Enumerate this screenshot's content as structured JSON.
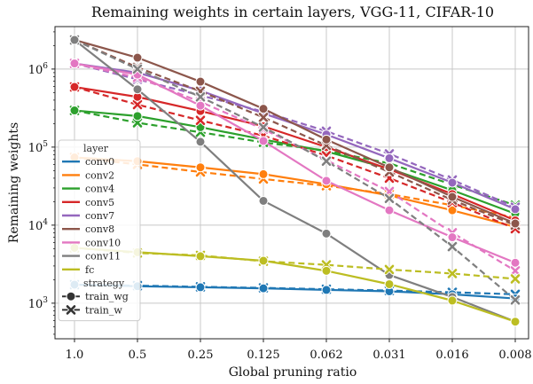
{
  "chart_data": {
    "type": "line",
    "title": "Remaining weights in certain layers, VGG-11, CIFAR-10",
    "xlabel": "Global pruning ratio",
    "ylabel": "Remaining weights",
    "yscale": "log",
    "ylim": [
      350,
      3500000
    ],
    "grid": true,
    "legend_position": "center-left",
    "categories": [
      "1.0",
      "0.5",
      "0.25",
      "0.125",
      "0.062",
      "0.031",
      "0.016",
      "0.008"
    ],
    "y_ticks": [
      {
        "value": 1000,
        "base": "10",
        "exp": "3"
      },
      {
        "value": 10000,
        "base": "10",
        "exp": "4"
      },
      {
        "value": 100000,
        "base": "10",
        "exp": "5"
      },
      {
        "value": 1000000,
        "base": "10",
        "exp": "6"
      }
    ],
    "legend": {
      "layer_title": "layer",
      "strategy_title": "strategy",
      "strategies": [
        {
          "name": "train_wg",
          "marker": "circle",
          "dash": "solid"
        },
        {
          "name": "train_w",
          "marker": "x",
          "dash": "dashed"
        }
      ]
    },
    "layers": [
      {
        "name": "conv0",
        "color": "#1f77b4",
        "train_wg": [
          1728,
          1650,
          1600,
          1550,
          1480,
          1420,
          1300,
          1150
        ],
        "train_w": [
          1728,
          1680,
          1620,
          1570,
          1510,
          1450,
          1380,
          1300
        ]
      },
      {
        "name": "conv2",
        "color": "#ff7f0e",
        "train_wg": [
          73700,
          66000,
          55000,
          45000,
          33500,
          24000,
          15500,
          9500
        ],
        "train_w": [
          73700,
          60000,
          48000,
          39000,
          32000,
          25000,
          18000,
          12500
        ]
      },
      {
        "name": "conv4",
        "color": "#2ca02c",
        "train_wg": [
          295000,
          250000,
          180000,
          125000,
          88000,
          53000,
          28000,
          14000
        ],
        "train_w": [
          295000,
          205000,
          155000,
          115000,
          90000,
          62000,
          33000,
          18000
        ]
      },
      {
        "name": "conv5",
        "color": "#d62728",
        "train_wg": [
          590000,
          440000,
          290000,
          185000,
          100000,
          52000,
          25000,
          11500
        ],
        "train_w": [
          590000,
          350000,
          220000,
          140000,
          78000,
          40000,
          19500,
          9000
        ]
      },
      {
        "name": "conv7",
        "color": "#9467bd",
        "train_wg": [
          1180000,
          900000,
          530000,
          270000,
          145000,
          72000,
          35000,
          16000
        ],
        "train_w": [
          1180000,
          740000,
          460000,
          285000,
          160000,
          82000,
          38000,
          17000
        ]
      },
      {
        "name": "conv8",
        "color": "#8c564b",
        "train_wg": [
          2360000,
          1400000,
          690000,
          310000,
          125000,
          55000,
          23000,
          10500
        ],
        "train_w": [
          2360000,
          1050000,
          520000,
          240000,
          105000,
          48000,
          21000,
          10000
        ]
      },
      {
        "name": "conv10",
        "color": "#e377c2",
        "train_wg": [
          1180000,
          850000,
          340000,
          120000,
          37000,
          15500,
          7000,
          3300
        ],
        "train_w": [
          1180000,
          780000,
          380000,
          170000,
          68000,
          27000,
          8000,
          2600
        ]
      },
      {
        "name": "conv11",
        "color": "#7f7f7f",
        "train_wg": [
          2360000,
          550000,
          117000,
          20500,
          7800,
          2300,
          1200,
          580
        ],
        "train_w": [
          2360000,
          1000000,
          440000,
          180000,
          66000,
          22000,
          5300,
          1100
        ]
      },
      {
        "name": "fc",
        "color": "#bcbd22",
        "train_wg": [
          5120,
          4500,
          4000,
          3500,
          2600,
          1750,
          1080,
          580
        ],
        "train_w": [
          5120,
          4400,
          4100,
          3450,
          3100,
          2700,
          2400,
          2050
        ]
      }
    ]
  }
}
